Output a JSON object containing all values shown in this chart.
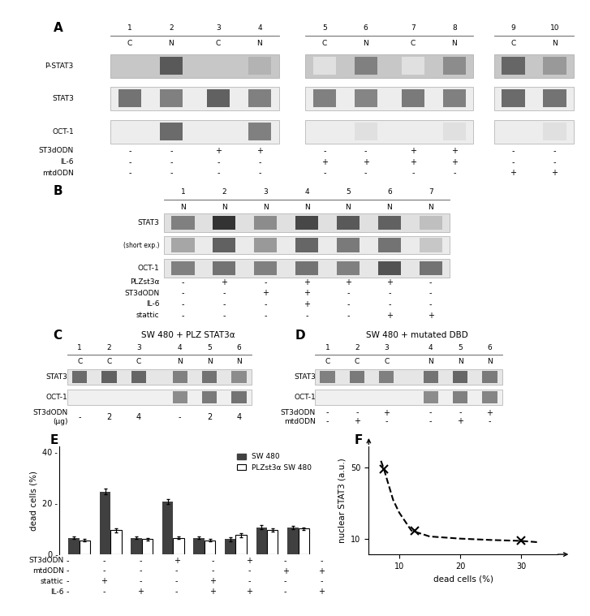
{
  "panel_A": {
    "lane_numbers": [
      "1",
      "2",
      "3",
      "4",
      "5",
      "6",
      "7",
      "8",
      "9",
      "10"
    ],
    "CN_labels": [
      "C",
      "N",
      "C",
      "N",
      "C",
      "N",
      "C",
      "N",
      "C",
      "N"
    ],
    "row_labels": [
      "P-STAT3",
      "STAT3",
      "OCT-1"
    ],
    "table_labels": [
      "ST3dODN",
      "IL-6",
      "mtdODN"
    ],
    "table_values": [
      [
        "-",
        "-",
        "+",
        "+",
        "-",
        "-",
        "+",
        "+",
        "-",
        "-"
      ],
      [
        "-",
        "-",
        "-",
        "-",
        "+",
        "+",
        "+",
        "+",
        "-",
        "-"
      ],
      [
        "-",
        "-",
        "-",
        "-",
        "-",
        "-",
        "-",
        "-",
        "+",
        "+"
      ]
    ],
    "pstat3": [
      0.93,
      0.35,
      0.92,
      0.7,
      0.88,
      0.5,
      0.88,
      0.55,
      0.4,
      0.6
    ],
    "stat3": [
      0.45,
      0.5,
      0.38,
      0.5,
      0.5,
      0.52,
      0.48,
      0.5,
      0.42,
      0.45
    ],
    "oct1": [
      0.92,
      0.42,
      0.92,
      0.5,
      0.92,
      0.88,
      0.92,
      0.88,
      0.92,
      0.88
    ]
  },
  "panel_B": {
    "lane_numbers": [
      "1",
      "2",
      "3",
      "4",
      "5",
      "6",
      "7"
    ],
    "N_labels": [
      "N",
      "N",
      "N",
      "N",
      "N",
      "N",
      "N"
    ],
    "row_labels": [
      "STAT3",
      "(short exp.)",
      "OCT-1"
    ],
    "table_labels": [
      "PLZst3α",
      "ST3dODN",
      "IL-6",
      "stattic"
    ],
    "table_values": [
      [
        "-",
        "+",
        "-",
        "+",
        "+",
        "+",
        "-"
      ],
      [
        "-",
        "-",
        "+",
        "+",
        "-",
        "-",
        "-"
      ],
      [
        "-",
        "-",
        "-",
        "+",
        "-",
        "-",
        "-"
      ],
      [
        "-",
        "-",
        "-",
        "-",
        "-",
        "+",
        "+"
      ]
    ],
    "stat3": [
      0.5,
      0.2,
      0.55,
      0.28,
      0.35,
      0.38,
      0.75
    ],
    "stat3s": [
      0.65,
      0.38,
      0.6,
      0.4,
      0.48,
      0.45,
      0.78
    ],
    "oct1": [
      0.5,
      0.45,
      0.5,
      0.45,
      0.5,
      0.32,
      0.45
    ]
  },
  "panel_C": {
    "title": "SW 480 + PLZ STAT3α",
    "lane_numbers": [
      "1",
      "2",
      "3",
      "4",
      "5",
      "6"
    ],
    "CN_labels": [
      "C",
      "C",
      "C",
      "N",
      "N",
      "N"
    ],
    "row_labels": [
      "STAT3",
      "OCT-1"
    ],
    "table_label1": "ST3dODN",
    "table_label2": "(μg)",
    "table_values": [
      "-",
      "2",
      "4",
      "-",
      "2",
      "4"
    ],
    "stat3": [
      0.42,
      0.38,
      0.4,
      0.5,
      0.45,
      0.55
    ],
    "oct1": [
      0.93,
      0.93,
      0.93,
      0.55,
      0.48,
      0.45
    ]
  },
  "panel_D": {
    "title": "SW 480 + mutated DBD",
    "lane_numbers": [
      "1",
      "2",
      "3",
      "4",
      "5",
      "6"
    ],
    "CN_labels": [
      "C",
      "C",
      "C",
      "N",
      "N",
      "N"
    ],
    "row_labels": [
      "STAT3",
      "OCT-1"
    ],
    "table_labels": [
      "ST3dODN",
      "mtdODN"
    ],
    "table_values": [
      [
        "-",
        "-",
        "+",
        "-",
        "-",
        "+"
      ],
      [
        "-",
        "+",
        "-",
        "-",
        "+",
        "-"
      ]
    ],
    "stat3": [
      0.5,
      0.48,
      0.5,
      0.45,
      0.4,
      0.48
    ],
    "oct1": [
      0.93,
      0.93,
      0.93,
      0.55,
      0.5,
      0.52
    ]
  },
  "panel_E": {
    "groups": 8,
    "sw480_values": [
      6.5,
      24.5,
      6.5,
      20.5,
      6.5,
      6.0,
      10.5,
      10.5
    ],
    "plz_values": [
      5.5,
      9.5,
      6.0,
      6.5,
      5.5,
      7.5,
      9.5,
      10.0
    ],
    "sw480_errors": [
      0.5,
      1.2,
      0.5,
      1.0,
      0.6,
      0.8,
      0.8,
      0.7
    ],
    "plz_errors": [
      0.4,
      0.8,
      0.5,
      0.5,
      0.5,
      0.7,
      0.7,
      0.6
    ],
    "ylabel": "dead cells (%)",
    "legend_sw480": "SW 480",
    "legend_plz": "PLZst3α SW 480",
    "table_labels": [
      "ST3dODN",
      "mtdODN",
      "stattic",
      "IL-6"
    ],
    "table_values": [
      [
        "-",
        "-",
        "-",
        "+",
        "-",
        "+",
        "-",
        "-"
      ],
      [
        "-",
        "-",
        "-",
        "-",
        "-",
        "-",
        "+",
        "+"
      ],
      [
        "-",
        "+",
        "-",
        "-",
        "+",
        "-",
        "-",
        "-"
      ],
      [
        "-",
        "-",
        "+",
        "-",
        "+",
        "+",
        "-",
        "+"
      ]
    ]
  },
  "panel_F": {
    "x_data": [
      7.5,
      12.5,
      30.0
    ],
    "y_data": [
      48.0,
      12.0,
      9.5
    ],
    "curve_x": [
      7.0,
      7.5,
      8.0,
      9.0,
      10.0,
      12.0,
      15.0,
      20.0,
      25.0,
      30.0,
      33.0
    ],
    "curve_y": [
      58.0,
      48.0,
      38.0,
      24.0,
      18.0,
      12.0,
      10.5,
      10.0,
      9.7,
      9.5,
      9.2
    ],
    "xlabel": "dead cells (%)",
    "ylabel": "nuclear STAT3 (a.u.)",
    "xticks": [
      10,
      20,
      30
    ],
    "yticks": [
      10,
      50
    ]
  }
}
